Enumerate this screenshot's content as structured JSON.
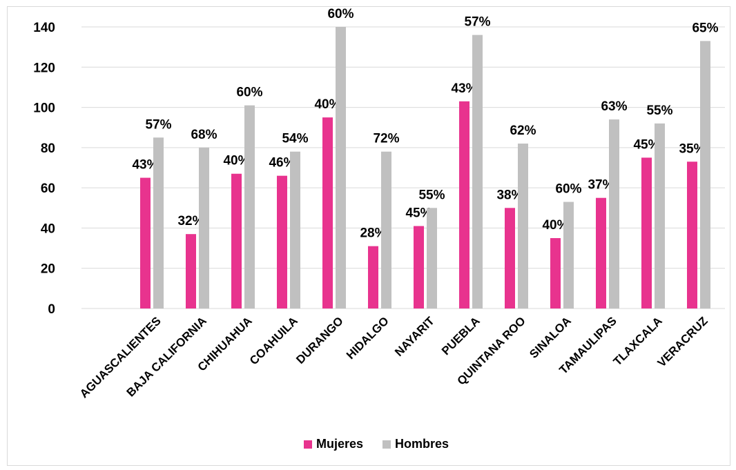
{
  "chart_data": {
    "type": "bar",
    "categories": [
      "AGUASCALIENTES",
      "BAJA CALIFORNIA",
      "CHIHUAHUA",
      "COAHUILA",
      "DURANGO",
      "HIDALGO",
      "NAYARIT",
      "PUEBLA",
      "QUINTANA ROO",
      "SINALOA",
      "TAMAULIPAS",
      "TLAXCALA",
      "VERACRUZ"
    ],
    "series": [
      {
        "name": "Mujeres",
        "color": "#e8338e",
        "values": [
          65,
          37,
          67,
          66,
          95,
          31,
          41,
          103,
          50,
          35,
          55,
          75,
          73
        ],
        "labels": [
          "43%",
          "32%",
          "40%",
          "46%",
          "40%",
          "28%",
          "45%",
          "43%",
          "38%",
          "40%",
          "37%",
          "45%",
          "35%"
        ]
      },
      {
        "name": "Hombres",
        "color": "#c0c0c0",
        "values": [
          85,
          80,
          101,
          78,
          140,
          78,
          50,
          136,
          82,
          53,
          94,
          92,
          133
        ],
        "labels": [
          "57%",
          "68%",
          "60%",
          "54%",
          "60%",
          "72%",
          "55%",
          "57%",
          "62%",
          "60%",
          "63%",
          "55%",
          "65%"
        ]
      }
    ],
    "ylim": [
      0,
      140
    ],
    "yticks": [
      "0",
      "20",
      "40",
      "60",
      "80",
      "100",
      "120",
      "140"
    ],
    "grid": true,
    "legend_position": "bottom"
  }
}
